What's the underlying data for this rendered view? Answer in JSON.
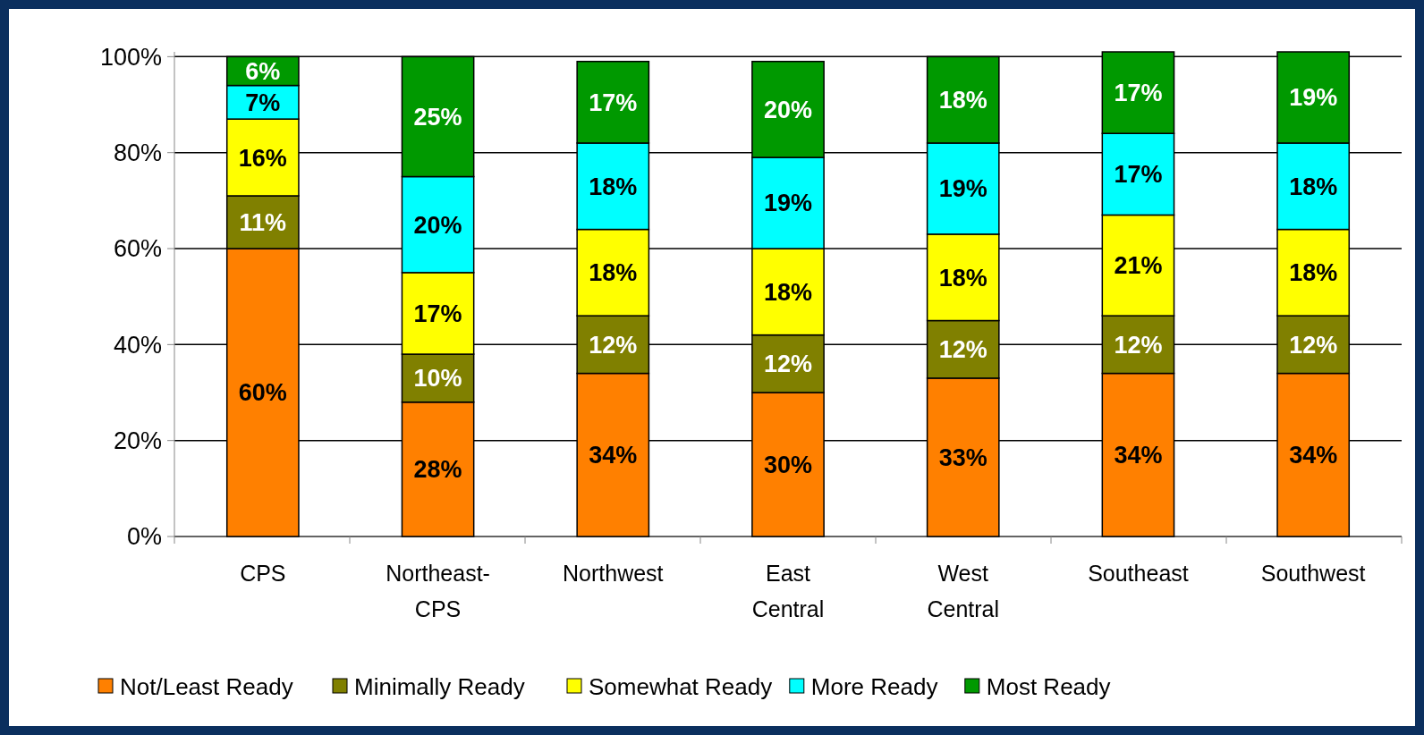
{
  "chart_data": {
    "type": "bar",
    "stacked": true,
    "categories": [
      "CPS",
      "Northeast-CPS",
      "Northwest",
      "East Central",
      "West Central",
      "Southeast",
      "Southwest"
    ],
    "series": [
      {
        "name": "Not/Least Ready",
        "color": "#ff8000",
        "values": [
          60,
          28,
          34,
          30,
          33,
          34,
          34
        ],
        "value_labels": [
          "60%",
          "28%",
          "34%",
          "30%",
          "33%",
          "34%",
          "34%"
        ]
      },
      {
        "name": "Minimally Ready",
        "color": "#808000",
        "values": [
          11,
          10,
          12,
          12,
          12,
          12,
          12
        ],
        "value_labels": [
          "11%",
          "10%",
          "12%",
          "12%",
          "12%",
          "12%",
          "12%"
        ]
      },
      {
        "name": "Somewhat Ready",
        "color": "#ffff00",
        "values": [
          16,
          17,
          18,
          18,
          18,
          21,
          18
        ],
        "value_labels": [
          "16%",
          "17%",
          "18%",
          "18%",
          "18%",
          "21%",
          "18%"
        ]
      },
      {
        "name": "More Ready",
        "color": "#00ffff",
        "values": [
          7,
          20,
          18,
          19,
          19,
          17,
          18
        ],
        "value_labels": [
          "7%",
          "20%",
          "18%",
          "19%",
          "19%",
          "17%",
          "18%"
        ]
      },
      {
        "name": "Most Ready",
        "color": "#009900",
        "values": [
          6,
          25,
          17,
          20,
          18,
          17,
          19
        ],
        "value_labels": [
          "6%",
          "25%",
          "17%",
          "20%",
          "18%",
          "17%",
          "19%"
        ]
      }
    ],
    "ylim": [
      0,
      101
    ],
    "yticks": [
      {
        "value": 0,
        "label": "0%"
      },
      {
        "value": 20,
        "label": "20%"
      },
      {
        "value": 40,
        "label": "40%"
      },
      {
        "value": 60,
        "label": "60%"
      },
      {
        "value": 80,
        "label": "80%"
      },
      {
        "value": 100,
        "label": "100%"
      }
    ],
    "grid": "y",
    "legend": "bottom"
  }
}
